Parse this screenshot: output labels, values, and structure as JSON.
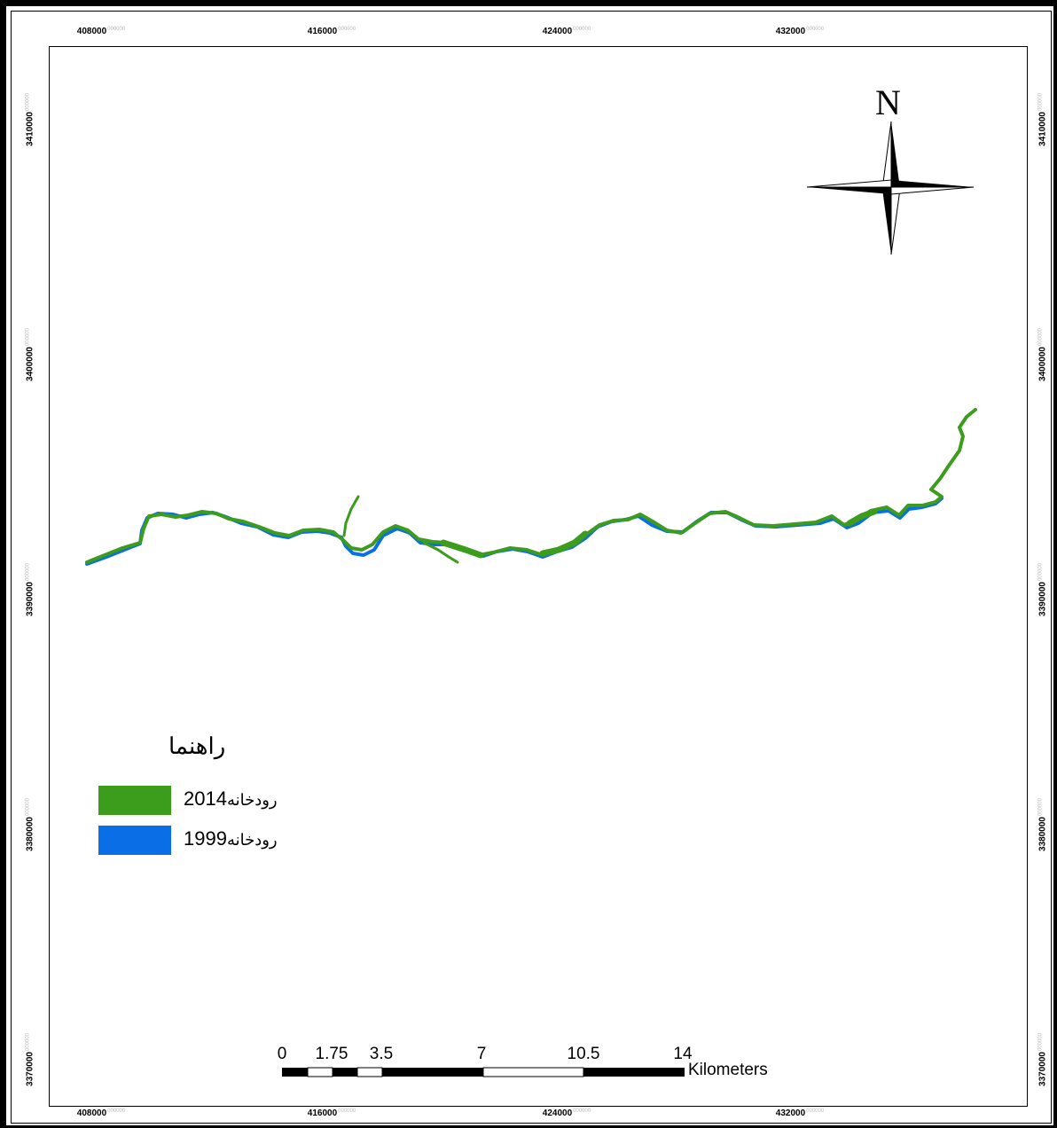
{
  "map": {
    "x_ticks": [
      "408000",
      "416000",
      "424000",
      "432000"
    ],
    "y_ticks": [
      "3410000",
      "3400000",
      "3390000",
      "3380000",
      "3370000"
    ],
    "tick_suffix": "000000",
    "north_label": "N",
    "legend": {
      "title": "راهنما",
      "items": [
        {
          "year": "2014",
          "text": "رودخانه",
          "color": "#3c9c1c"
        },
        {
          "year": "1999",
          "text": "رودخانه",
          "color": "#0a6ee6"
        }
      ]
    },
    "scale_bar": {
      "labels": [
        "0",
        "1.75",
        "3.5",
        "7",
        "10.5",
        "14"
      ],
      "units": "Kilometers"
    },
    "colors": {
      "river_2014": "#3c9c1c",
      "river_1999": "#0a6ee6",
      "frame": "#000000"
    }
  }
}
